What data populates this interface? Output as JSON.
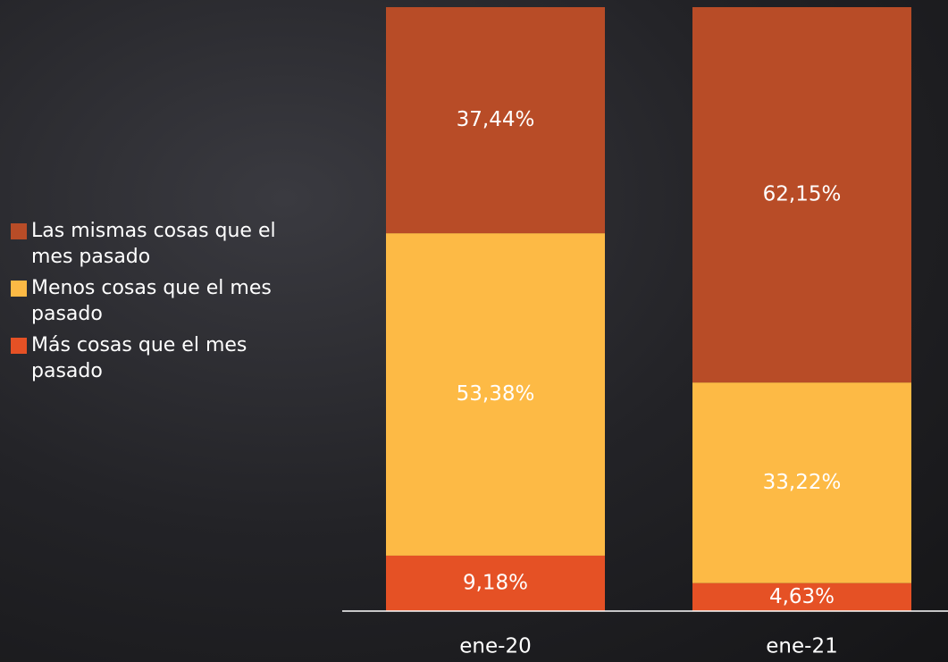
{
  "chart_data": {
    "type": "stacked_bar",
    "categories": [
      "ene-20",
      "ene-21"
    ],
    "series": [
      {
        "name": "Más cosas que el mes pasado",
        "color": "#e55125",
        "values": [
          9.18,
          4.63
        ],
        "value_labels": [
          "9,18%",
          "4,63%"
        ]
      },
      {
        "name": "Menos cosas que el mes pasado",
        "color": "#fdba45",
        "values": [
          53.38,
          33.22
        ],
        "value_labels": [
          "53,38%",
          "33,22%"
        ]
      },
      {
        "name": "Las mismas cosas que el mes pasado",
        "color": "#b84c27",
        "values": [
          37.44,
          62.15
        ],
        "value_labels": [
          "37,44%",
          "62,15%"
        ]
      }
    ],
    "ylim": [
      0,
      100
    ],
    "legend": "left"
  }
}
